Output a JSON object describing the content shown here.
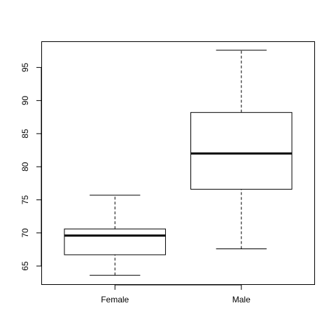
{
  "chart_data": {
    "type": "boxplot",
    "title": "",
    "xlabel": "",
    "ylabel": "",
    "ylim": [
      62.2,
      98.9
    ],
    "y_ticks": [
      "65",
      "70",
      "75",
      "80",
      "85",
      "90",
      "95"
    ],
    "categories": [
      "Female",
      "Male"
    ],
    "boxes": [
      {
        "category": "Female",
        "whisker_low": 63.6,
        "q1": 66.7,
        "median": 69.6,
        "q3": 70.6,
        "whisker_high": 75.7
      },
      {
        "category": "Male",
        "whisker_low": 67.6,
        "q1": 76.6,
        "median": 82.0,
        "q3": 88.2,
        "whisker_high": 97.6
      }
    ],
    "grid": false,
    "legend": "none"
  }
}
